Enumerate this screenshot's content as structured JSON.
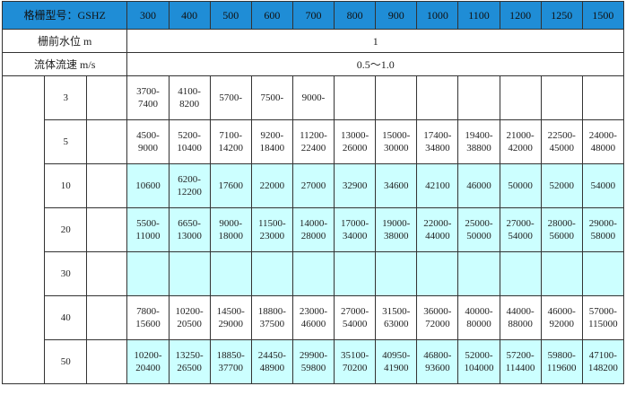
{
  "header": {
    "label": "格栅型号：GSHZ",
    "columns": [
      "300",
      "400",
      "500",
      "600",
      "700",
      "800",
      "900",
      "1000",
      "1100",
      "1200",
      "1250",
      "1500"
    ]
  },
  "params": [
    {
      "label": "栅前水位 m",
      "value": "1"
    },
    {
      "label": "流体流速 m/s",
      "value": "0.5～1.0"
    }
  ],
  "rows": [
    {
      "gap": "3",
      "cells": [
        "3700-7400",
        "4100-8200",
        "5700-",
        "7500-",
        "9000-",
        null,
        null,
        null,
        null,
        null,
        null,
        null
      ]
    },
    {
      "gap": "5",
      "cells": [
        "4500-9000",
        "5200-10400",
        "7100-14200",
        "9200-18400",
        "11200-22400",
        "13000-26000",
        "15000-30000",
        "17400-34800",
        "19400-38800",
        "21000-42000",
        "22500-45000",
        "24000-48000"
      ]
    },
    {
      "gap": "10",
      "cells": [
        "10600",
        "6200-12200",
        "17600",
        "22000",
        "27000",
        "32900",
        "34600",
        "42100",
        "46000",
        "50000",
        "52000",
        "54000"
      ]
    },
    {
      "gap": "20",
      "cells": [
        "5500-11000",
        "6650-13000",
        "9000-18000",
        "11500-23000",
        "14000-28000",
        "17000-34000",
        "19000-38000",
        "22000-44000",
        "25000-50000",
        "27000-54000",
        "28000-56000",
        "29000-58000"
      ]
    },
    {
      "gap": "30",
      "cells": [
        null,
        null,
        null,
        null,
        null,
        null,
        null,
        null,
        null,
        null,
        null,
        null
      ]
    },
    {
      "gap": "40",
      "cells": [
        "7800-15600",
        "10200-20500",
        "14500-29000",
        "18800-37500",
        "23000-46000",
        "27000-54000",
        "31500-63000",
        "36000-72000",
        "40000-80000",
        "44000-88000",
        "46000-92000",
        "57000-115000"
      ]
    },
    {
      "gap": "50",
      "cells": [
        "10200-20400",
        "13250-26500",
        "18850-37700",
        "24450-48900",
        "29900-59800",
        "35100-70200",
        "40950-41900",
        "46800-93600",
        "52000-104000",
        "57200-114400",
        "59800-119600",
        "47100-148200"
      ]
    }
  ]
}
